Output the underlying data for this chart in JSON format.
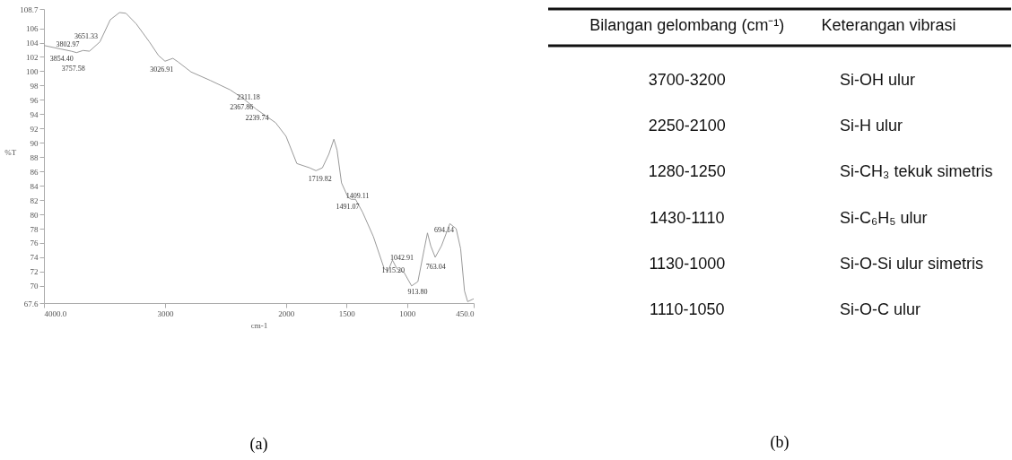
{
  "chart_data": [
    {
      "type": "line",
      "xlabel": "cm-1",
      "ylabel": "%T",
      "annotations": [
        "(a)",
        {
          "text": "3854.40",
          "x": 3854,
          "y": 103.1
        },
        {
          "text": "3802.97",
          "x": 3803,
          "y": 102.9
        },
        {
          "text": "3757.58",
          "x": 3758,
          "y": 102.8
        },
        {
          "text": "3651.33",
          "x": 3651,
          "y": 102.9
        },
        {
          "text": "3026.91",
          "x": 3027,
          "y": 101.5
        },
        {
          "text": "2367.86",
          "x": 2368,
          "y": 96.3
        },
        {
          "text": "2311.18",
          "x": 2311,
          "y": 95.6
        },
        {
          "text": "2239.74",
          "x": 2240,
          "y": 94.8
        },
        {
          "text": "1719.82",
          "x": 1720,
          "y": 86.3
        },
        {
          "text": "1491.07",
          "x": 1491,
          "y": 82.4
        },
        {
          "text": "1409.11",
          "x": 1409,
          "y": 81.8
        },
        {
          "text": "1115.20",
          "x": 1115,
          "y": 73.5
        },
        {
          "text": "1042.91",
          "x": 1043,
          "y": 72.0
        },
        {
          "text": "913.80",
          "x": 914,
          "y": 70.5
        },
        {
          "text": "763.04",
          "x": 763,
          "y": 74.0
        },
        {
          "text": "694.14",
          "x": 694,
          "y": 77.0
        }
      ],
      "x": [
        4000,
        3860,
        3774,
        3731,
        3677,
        3624,
        3538,
        3452,
        3376,
        3323,
        3237,
        3129,
        3054,
        3000,
        2935,
        2892,
        2785,
        2624,
        2462,
        2355,
        2247,
        2086,
        2000,
        1911,
        1805,
        1753,
        1700,
        1647,
        1605,
        1579,
        1542,
        1489,
        1463,
        1426,
        1368,
        1279,
        1189,
        1158,
        1121,
        1084,
        1053,
        1026,
        963,
        911,
        858,
        832,
        805,
        768,
        716,
        647,
        595,
        558,
        526,
        500,
        463,
        450
      ],
      "series": [
        {
          "color": "#9a9a9a",
          "values": [
            103.6,
            103.1,
            102.8,
            102.6,
            102.9,
            102.8,
            104.1,
            107.2,
            108.2,
            108.1,
            106.6,
            104.1,
            102.2,
            101.4,
            101.8,
            101.3,
            99.9,
            98.7,
            97.4,
            96.2,
            94.7,
            92.8,
            90.9,
            87.1,
            86.5,
            86.1,
            86.5,
            88.4,
            90.5,
            89.0,
            84.4,
            82.4,
            82.1,
            82.1,
            80.3,
            76.9,
            72.4,
            72.1,
            73.6,
            72.4,
            72.1,
            71.9,
            70.0,
            70.6,
            75.2,
            77.4,
            75.6,
            74.0,
            75.6,
            78.7,
            78.0,
            75.2,
            69.3,
            67.8,
            68.1,
            68.2
          ]
        }
      ],
      "xlim": [
        4000,
        450
      ],
      "xticks": [
        {
          "value": 4000,
          "label": "4000.0"
        },
        3000,
        2000,
        1500,
        1000,
        {
          "value": 450,
          "label": "450.0"
        }
      ],
      "ylim": [
        67.6,
        108.7
      ],
      "yticks": [
        67.6,
        70,
        72,
        74,
        76,
        78,
        80,
        82,
        84,
        86,
        88,
        90,
        92,
        94,
        96,
        98,
        100,
        102,
        104,
        106,
        108.7
      ]
    },
    {
      "type": "other",
      "annotations": [
        "(b)"
      ],
      "categories": [
        "Bilangan gelombang (cm⁻¹)",
        "Keterangan vibrasi"
      ],
      "cell_labels": [
        [
          "3700-3200",
          "Si-OH ulur"
        ],
        [
          "2250-2100",
          "Si-H ulur"
        ],
        [
          "1280-1250",
          "Si-CH₃ tekuk simetris"
        ],
        [
          "1430-1110",
          "Si-C₆H₅ ulur"
        ],
        [
          "1130-1000",
          "Si-O-Si ulur simetris"
        ],
        [
          "1110-1050",
          "Si-O-C ulur"
        ]
      ]
    }
  ]
}
